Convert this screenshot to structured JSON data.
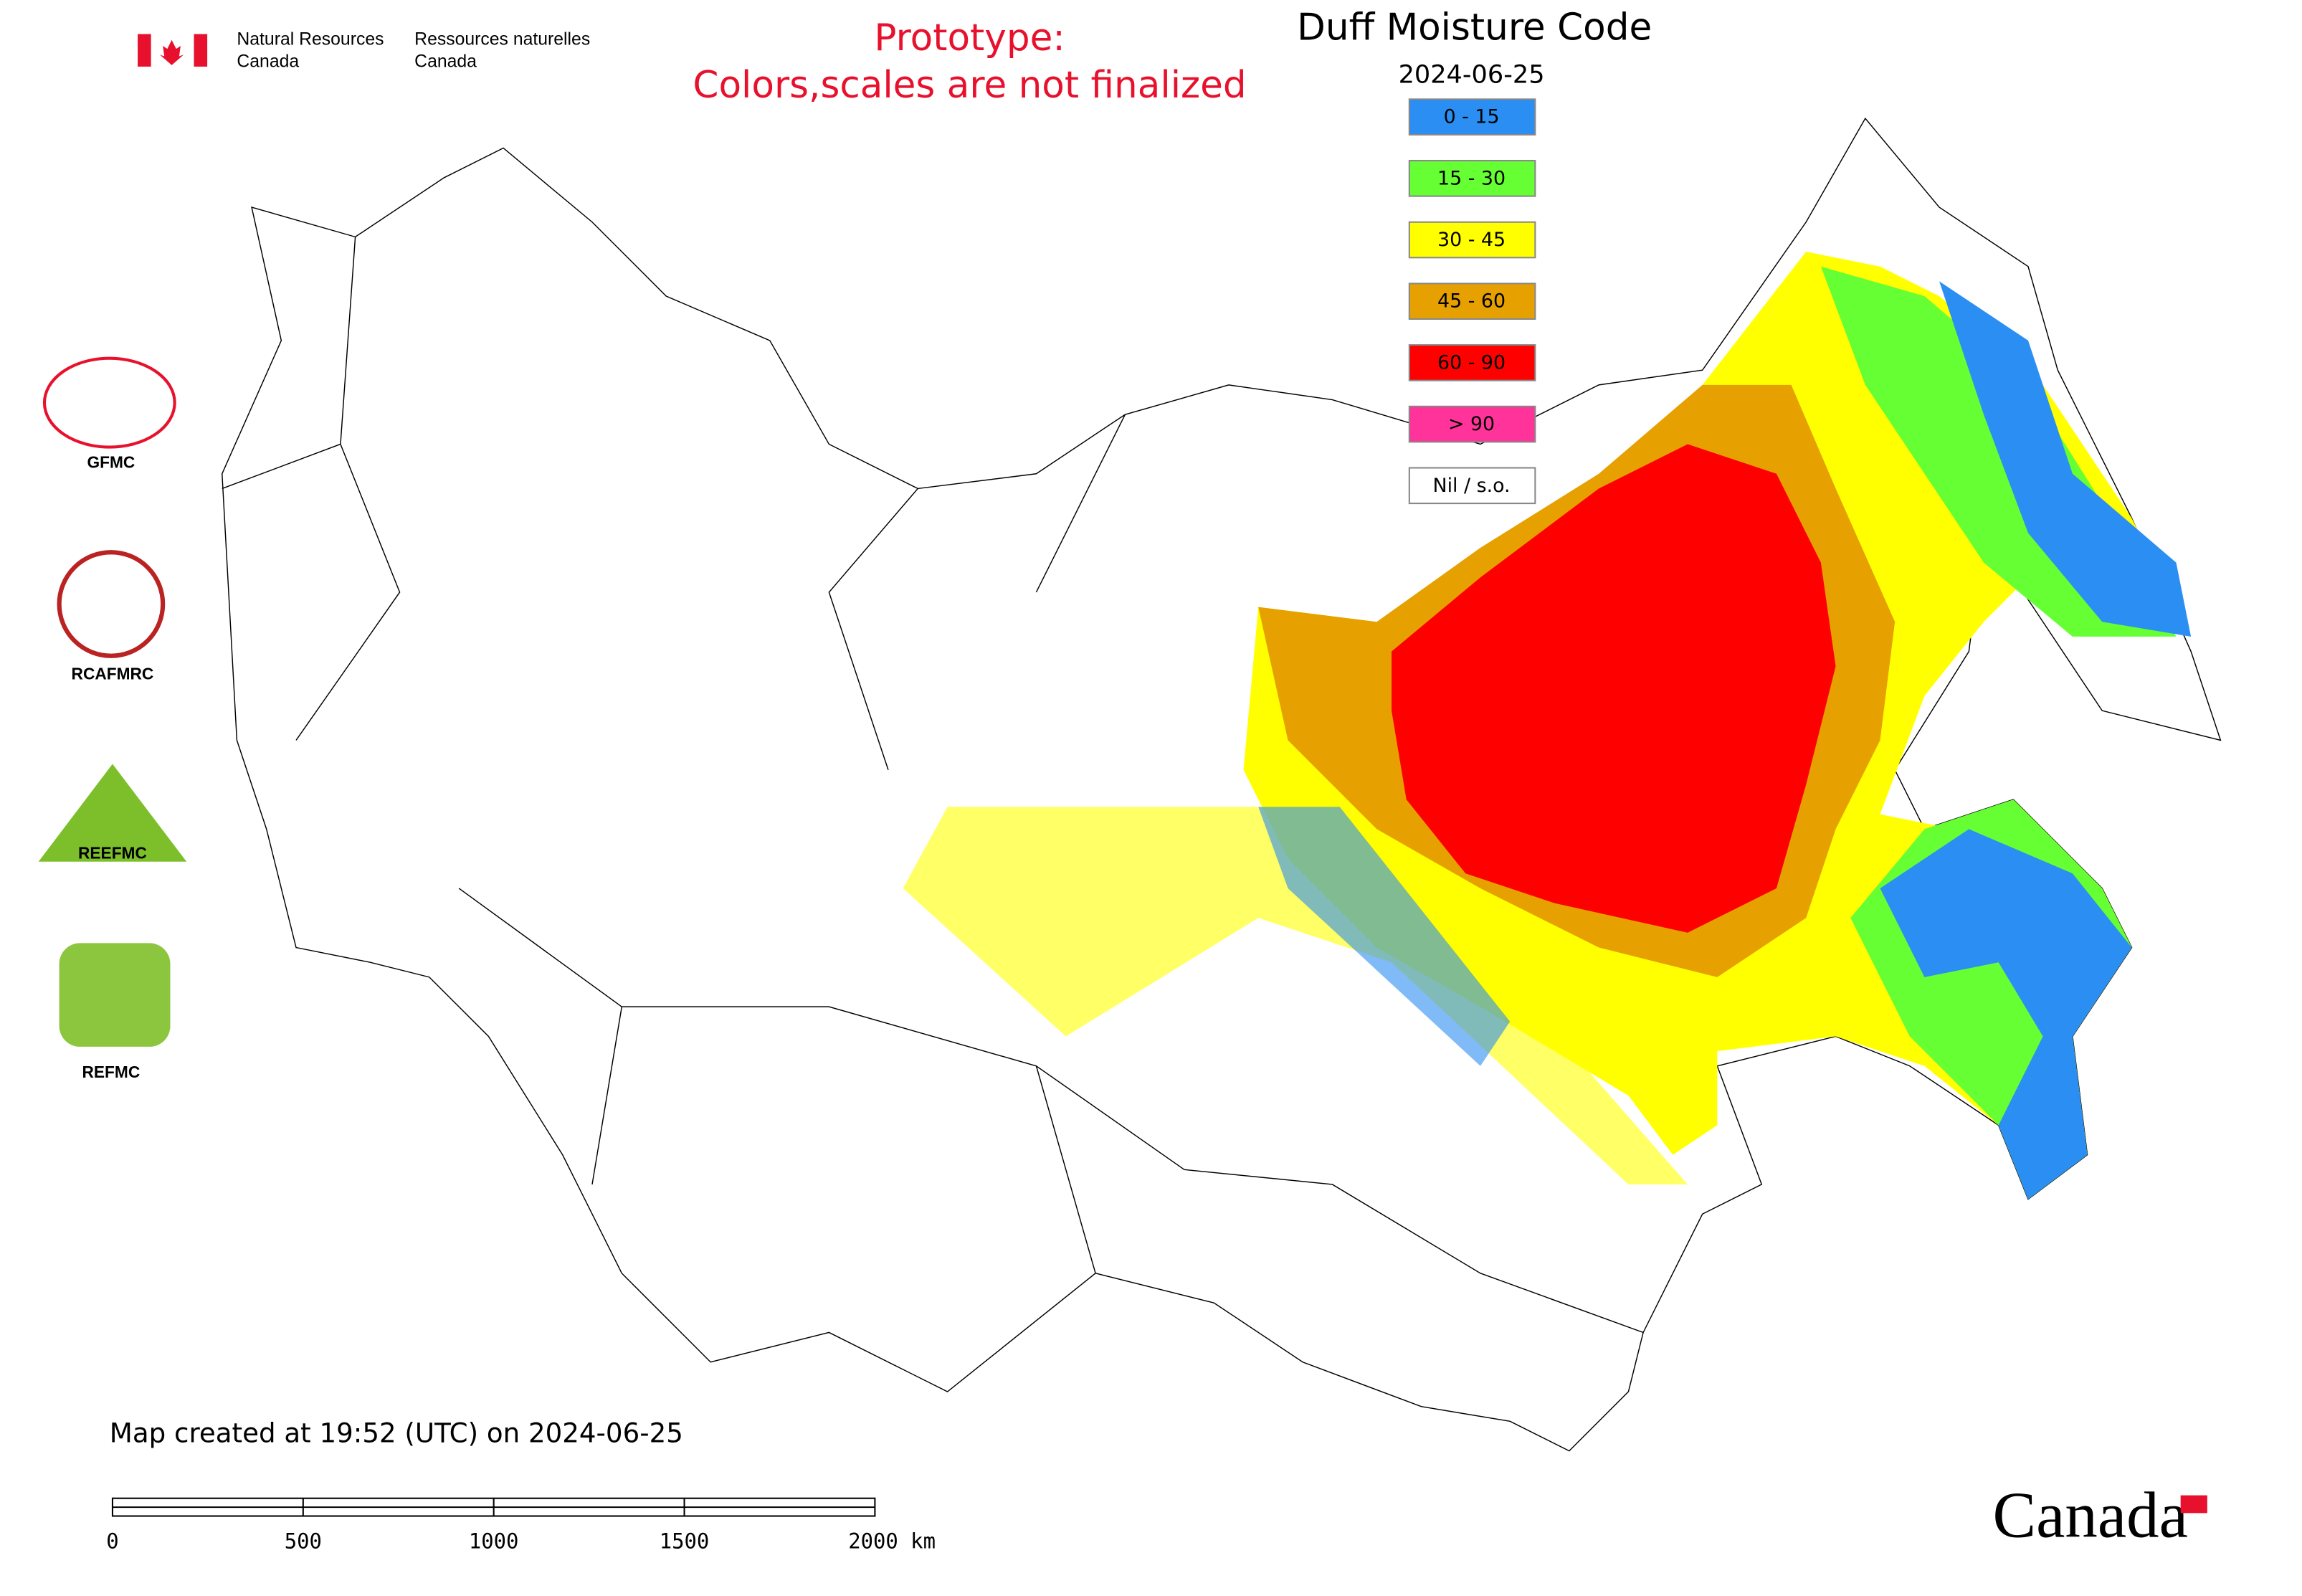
{
  "header": {
    "agency_en": [
      "Natural Resources",
      "Canada"
    ],
    "agency_fr": [
      "Ressources naturelles",
      "Canada"
    ]
  },
  "notice": [
    "Prototype:",
    "Colors,scales are not finalized"
  ],
  "map": {
    "title": "Duff Moisture Code",
    "date": "2024-06-25",
    "legend": [
      {
        "label": "0 - 15",
        "color": "#2b8ef2"
      },
      {
        "label": "15 - 30",
        "color": "#66ff33"
      },
      {
        "label": "30 - 45",
        "color": "#ffff00"
      },
      {
        "label": "45 - 60",
        "color": "#e6a000"
      },
      {
        "label": "60 - 90",
        "color": "#ff0000"
      },
      {
        "label": "> 90",
        "color": "#ff3399"
      },
      {
        "label": "Nil / s.o.",
        "color": "#ffffff"
      }
    ]
  },
  "logos": [
    "GFMC",
    "RCAFMRC",
    "REEFMC",
    "REFMC"
  ],
  "footer": {
    "created": "Map created at 19:52 (UTC) on 2024-06-25",
    "scale_bar": [
      "0",
      "500",
      "1000",
      "1500",
      "2000 km"
    ],
    "wordmark": "Canada"
  }
}
